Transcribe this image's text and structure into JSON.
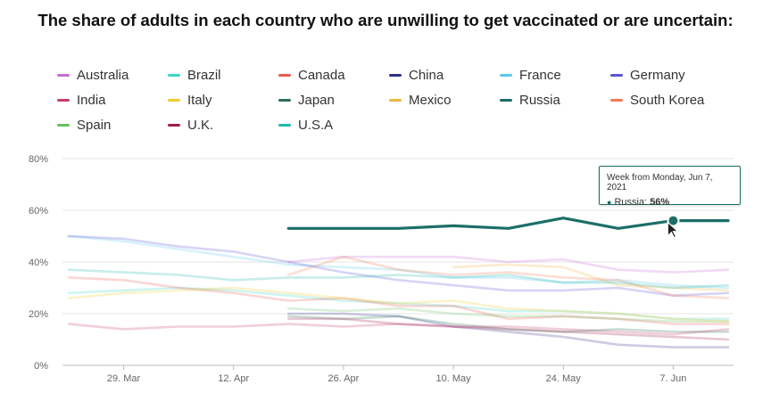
{
  "chart_data": {
    "type": "line",
    "title": "The share of adults in each country who are unwilling to get vaccinated or are uncertain:",
    "x": [
      "22. Mar",
      "29. Mar",
      "5. Apr",
      "12. Apr",
      "19. Apr",
      "26. Apr",
      "3. May",
      "10. May",
      "17. May",
      "24. May",
      "31. May",
      "7. Jun",
      "14. Jun"
    ],
    "x_tick_labels": [
      "29. Mar",
      "12. Apr",
      "26. Apr",
      "10. May",
      "24. May",
      "7. Jun"
    ],
    "y_tick_labels": [
      "0%",
      "20%",
      "40%",
      "60%",
      "80%"
    ],
    "ylim": [
      0,
      80
    ],
    "y_unit": "%",
    "grid": true,
    "legend_position": "top",
    "highlighted_series": "Russia",
    "series": [
      {
        "name": "Australia",
        "color": "#c86dd7",
        "values": [
          null,
          null,
          null,
          null,
          40,
          42,
          42,
          42,
          40,
          41,
          37,
          36,
          37
        ]
      },
      {
        "name": "Brazil",
        "color": "#3ad6c8",
        "values": [
          28,
          29,
          30,
          29,
          27,
          25,
          24,
          23,
          21,
          21,
          20,
          18,
          18
        ]
      },
      {
        "name": "Canada",
        "color": "#ee5a4f",
        "values": [
          34,
          33,
          30,
          28,
          25,
          26,
          23,
          23,
          18,
          19,
          18,
          16,
          16
        ]
      },
      {
        "name": "China",
        "color": "#2e2f8c",
        "values": [
          null,
          null,
          null,
          null,
          20,
          20,
          19,
          15,
          13,
          11,
          8,
          7,
          7
        ]
      },
      {
        "name": "France",
        "color": "#5bc8ee",
        "values": [
          50,
          48,
          45,
          42,
          39,
          38,
          37,
          34,
          34,
          32,
          33,
          31,
          30
        ]
      },
      {
        "name": "Germany",
        "color": "#5a55d6",
        "values": [
          50,
          49,
          46,
          44,
          40,
          36,
          33,
          31,
          29,
          29,
          30,
          27,
          28
        ]
      },
      {
        "name": "India",
        "color": "#c83d6e",
        "values": [
          16,
          14,
          15,
          15,
          16,
          15,
          16,
          15,
          15,
          14,
          13,
          12,
          14
        ]
      },
      {
        "name": "Italy",
        "color": "#f2cc2a",
        "values": [
          26,
          28,
          29,
          30,
          28,
          26,
          24,
          25,
          22,
          21,
          20,
          18,
          17
        ]
      },
      {
        "name": "Japan",
        "color": "#2e7053",
        "values": [
          null,
          null,
          null,
          null,
          19,
          18,
          19,
          16,
          14,
          13,
          14,
          13,
          13
        ]
      },
      {
        "name": "Mexico",
        "color": "#efb53c",
        "values": [
          null,
          null,
          null,
          null,
          null,
          null,
          null,
          38,
          39,
          38,
          31,
          30,
          29
        ]
      },
      {
        "name": "Russia",
        "color": "#1b6f67",
        "values": [
          null,
          null,
          null,
          null,
          53,
          53,
          53,
          54,
          53,
          57,
          53,
          56,
          56
        ]
      },
      {
        "name": "South Korea",
        "color": "#f47a54",
        "values": [
          null,
          null,
          null,
          null,
          35,
          42,
          37,
          35,
          36,
          34,
          33,
          27,
          26
        ]
      },
      {
        "name": "Spain",
        "color": "#6cbf62",
        "values": [
          null,
          null,
          null,
          null,
          22,
          21,
          22,
          20,
          19,
          19,
          18,
          17,
          17
        ]
      },
      {
        "name": "U.K.",
        "color": "#a11c50",
        "values": [
          null,
          null,
          null,
          null,
          18,
          18,
          16,
          15,
          14,
          13,
          12,
          11,
          10
        ]
      },
      {
        "name": "U.S.A",
        "color": "#1fb9ab",
        "values": [
          37,
          36,
          35,
          33,
          34,
          34,
          35,
          34,
          35,
          32,
          32,
          30,
          31
        ]
      }
    ],
    "tooltip": {
      "header": "Week from Monday, Jun 7, 2021",
      "series": "Russia",
      "value": "56%"
    }
  },
  "tooltip_ui": {
    "header": "Week from Monday, Jun 7, 2021",
    "series_label": "Russia:",
    "value": "56%"
  }
}
